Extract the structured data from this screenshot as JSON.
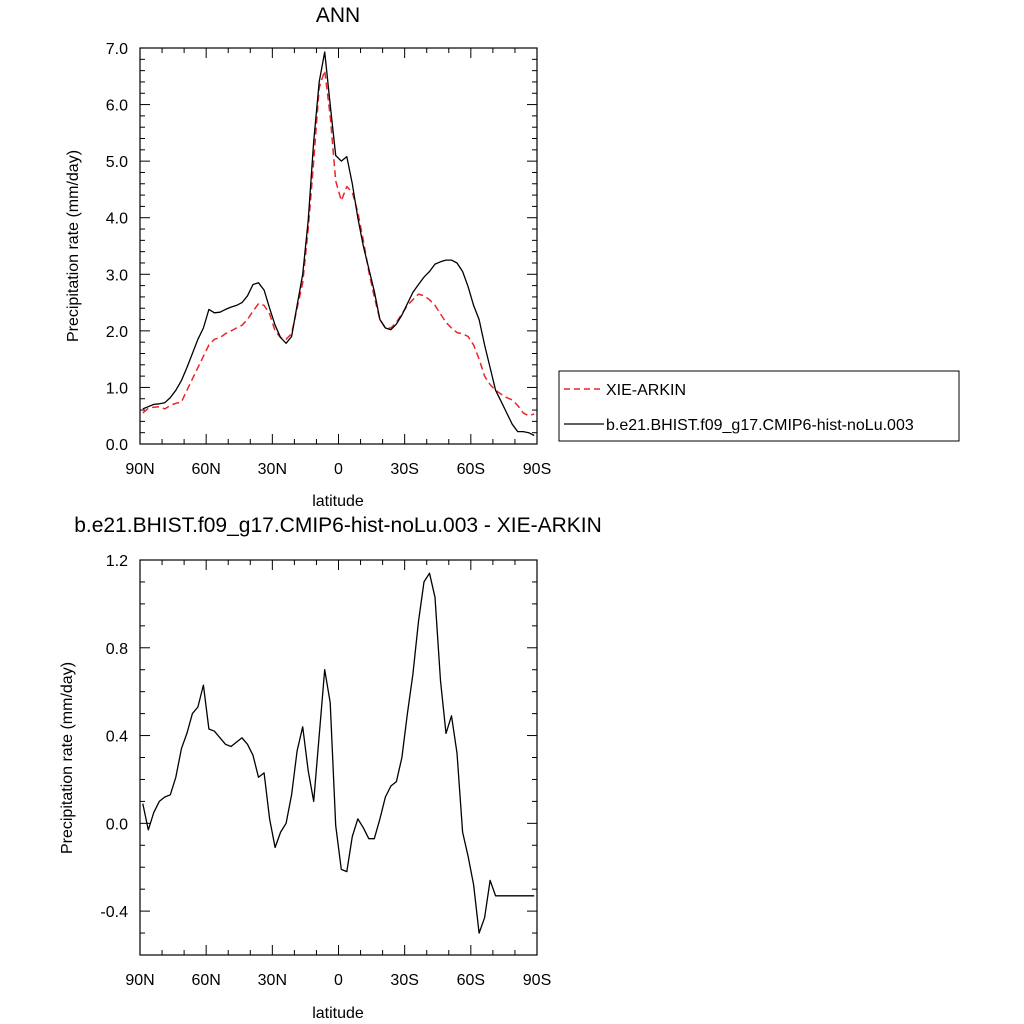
{
  "colors": {
    "obs": "#e8262b",
    "model": "#000000"
  },
  "chart_data": [
    {
      "type": "line",
      "title": "ANN",
      "xlabel": "latitude",
      "ylabel": "Precipitation rate (mm/day)",
      "xlim": [
        90,
        -90
      ],
      "ylim": [
        0,
        7
      ],
      "xticks": [
        {
          "v": 90,
          "label": "90N"
        },
        {
          "v": 60,
          "label": "60N"
        },
        {
          "v": 30,
          "label": "30N"
        },
        {
          "v": 0,
          "label": "0"
        },
        {
          "v": -30,
          "label": "30S"
        },
        {
          "v": -60,
          "label": "60S"
        },
        {
          "v": -90,
          "label": "90S"
        }
      ],
      "yticks": [
        {
          "v": 0,
          "label": "0.0"
        },
        {
          "v": 1,
          "label": "1.0"
        },
        {
          "v": 2,
          "label": "2.0"
        },
        {
          "v": 3,
          "label": "3.0"
        },
        {
          "v": 4,
          "label": "4.0"
        },
        {
          "v": 5,
          "label": "5.0"
        },
        {
          "v": 6,
          "label": "6.0"
        },
        {
          "v": 7,
          "label": "7.0"
        }
      ],
      "legend_position": "right",
      "series": [
        {
          "name": "XIE-ARKIN",
          "style": "dashed",
          "color_key": "obs",
          "x": [
            88.75,
            86.25,
            83.75,
            81.25,
            78.75,
            76.25,
            73.75,
            71.25,
            68.75,
            66.25,
            63.75,
            61.25,
            58.75,
            56.25,
            53.75,
            51.25,
            48.75,
            46.25,
            43.75,
            41.25,
            38.75,
            36.25,
            33.75,
            31.25,
            28.75,
            26.25,
            23.75,
            21.25,
            18.75,
            16.25,
            13.75,
            11.25,
            8.75,
            6.25,
            3.75,
            1.25,
            -1.25,
            -3.75,
            -6.25,
            -8.75,
            -11.25,
            -13.75,
            -16.25,
            -18.75,
            -21.25,
            -23.75,
            -26.25,
            -28.75,
            -31.25,
            -33.75,
            -36.25,
            -38.75,
            -41.25,
            -43.75,
            -46.25,
            -48.75,
            -51.25,
            -53.75,
            -56.25,
            -58.75,
            -61.25,
            -63.75,
            -66.25,
            -68.75,
            -71.25,
            -73.75,
            -76.25,
            -78.75,
            -81.25,
            -83.75,
            -86.25,
            -88.75
          ],
          "y": [
            0.55,
            0.63,
            0.65,
            0.66,
            0.62,
            0.68,
            0.72,
            0.74,
            0.95,
            1.15,
            1.35,
            1.55,
            1.75,
            1.85,
            1.88,
            1.95,
            2.0,
            2.05,
            2.1,
            2.2,
            2.35,
            2.48,
            2.45,
            2.3,
            2.0,
            1.88,
            1.85,
            1.95,
            2.4,
            2.85,
            3.8,
            5.0,
            6.3,
            6.6,
            5.8,
            4.65,
            4.3,
            4.55,
            4.45,
            4.1,
            3.6,
            3.05,
            2.6,
            2.2,
            2.05,
            2.05,
            2.15,
            2.3,
            2.45,
            2.55,
            2.65,
            2.62,
            2.55,
            2.45,
            2.3,
            2.15,
            2.05,
            1.97,
            1.95,
            1.9,
            1.75,
            1.5,
            1.2,
            1.05,
            0.95,
            0.88,
            0.82,
            0.78,
            0.68,
            0.55,
            0.5,
            0.53
          ]
        },
        {
          "name": "b.e21.BHIST.f09_g17.CMIP6-hist-noLu.003",
          "style": "solid",
          "color_key": "model",
          "x": [
            88.75,
            86.25,
            83.75,
            81.25,
            78.75,
            76.25,
            73.75,
            71.25,
            68.75,
            66.25,
            63.75,
            61.25,
            58.75,
            56.25,
            53.75,
            51.25,
            48.75,
            46.25,
            43.75,
            41.25,
            38.75,
            36.25,
            33.75,
            31.25,
            28.75,
            26.25,
            23.75,
            21.25,
            18.75,
            16.25,
            13.75,
            11.25,
            8.75,
            6.25,
            3.75,
            1.25,
            -1.25,
            -3.75,
            -6.25,
            -8.75,
            -11.25,
            -13.75,
            -16.25,
            -18.75,
            -21.25,
            -23.75,
            -26.25,
            -28.75,
            -31.25,
            -33.75,
            -36.25,
            -38.75,
            -41.25,
            -43.75,
            -46.25,
            -48.75,
            -51.25,
            -53.75,
            -56.25,
            -58.75,
            -61.25,
            -63.75,
            -66.25,
            -68.75,
            -71.25,
            -73.75,
            -76.25,
            -78.75,
            -81.25,
            -83.75,
            -86.25,
            -88.75
          ],
          "y": [
            0.62,
            0.66,
            0.7,
            0.71,
            0.73,
            0.82,
            0.95,
            1.12,
            1.35,
            1.6,
            1.85,
            2.05,
            2.38,
            2.32,
            2.33,
            2.38,
            2.42,
            2.45,
            2.5,
            2.62,
            2.82,
            2.85,
            2.72,
            2.4,
            2.1,
            1.88,
            1.78,
            1.9,
            2.45,
            3.0,
            3.95,
            5.35,
            6.4,
            6.93,
            6.0,
            5.1,
            5.0,
            5.08,
            4.6,
            4.0,
            3.5,
            3.1,
            2.7,
            2.2,
            2.05,
            2.02,
            2.12,
            2.28,
            2.48,
            2.68,
            2.82,
            2.95,
            3.05,
            3.18,
            3.22,
            3.25,
            3.25,
            3.2,
            3.05,
            2.78,
            2.45,
            2.2,
            1.75,
            1.35,
            0.95,
            0.75,
            0.55,
            0.35,
            0.22,
            0.22,
            0.2,
            0.15
          ]
        }
      ]
    },
    {
      "type": "line",
      "title": "b.e21.BHIST.f09_g17.CMIP6-hist-noLu.003 - XIE-ARKIN",
      "xlabel": "latitude",
      "ylabel": "Precipitation rate (mm/day)",
      "xlim": [
        90,
        -90
      ],
      "ylim": [
        -0.6,
        1.2
      ],
      "xticks": [
        {
          "v": 90,
          "label": "90N"
        },
        {
          "v": 60,
          "label": "60N"
        },
        {
          "v": 30,
          "label": "30N"
        },
        {
          "v": 0,
          "label": "0"
        },
        {
          "v": -30,
          "label": "30S"
        },
        {
          "v": -60,
          "label": "60S"
        },
        {
          "v": -90,
          "label": "90S"
        }
      ],
      "yticks": [
        {
          "v": -0.4,
          "label": "-0.4"
        },
        {
          "v": 0,
          "label": "0.0"
        },
        {
          "v": 0.4,
          "label": "0.4"
        },
        {
          "v": 0.8,
          "label": "0.8"
        },
        {
          "v": 1.2,
          "label": "1.2"
        }
      ],
      "series": [
        {
          "style": "solid",
          "color_key": "model",
          "x": [
            88.75,
            86.25,
            83.75,
            81.25,
            78.75,
            76.25,
            73.75,
            71.25,
            68.75,
            66.25,
            63.75,
            61.25,
            58.75,
            56.25,
            53.75,
            51.25,
            48.75,
            46.25,
            43.75,
            41.25,
            38.75,
            36.25,
            33.75,
            31.25,
            28.75,
            26.25,
            23.75,
            21.25,
            18.75,
            16.25,
            13.75,
            11.25,
            8.75,
            6.25,
            3.75,
            1.25,
            -1.25,
            -3.75,
            -6.25,
            -8.75,
            -11.25,
            -13.75,
            -16.25,
            -18.75,
            -21.25,
            -23.75,
            -26.25,
            -28.75,
            -31.25,
            -33.75,
            -36.25,
            -38.75,
            -41.25,
            -43.75,
            -46.25,
            -48.75,
            -51.25,
            -53.75,
            -56.25,
            -58.75,
            -61.25,
            -63.75,
            -66.25,
            -68.75,
            -71.25,
            -73.75,
            -76.25,
            -78.75,
            -81.25,
            -83.75,
            -86.25,
            -88.75
          ],
          "y": [
            0.09,
            -0.03,
            0.05,
            0.1,
            0.12,
            0.13,
            0.21,
            0.34,
            0.41,
            0.5,
            0.53,
            0.63,
            0.43,
            0.42,
            0.39,
            0.36,
            0.35,
            0.37,
            0.39,
            0.36,
            0.31,
            0.21,
            0.23,
            0.02,
            -0.11,
            -0.04,
            0.0,
            0.13,
            0.33,
            0.44,
            0.24,
            0.1,
            0.4,
            0.7,
            0.55,
            -0.01,
            -0.21,
            -0.22,
            -0.06,
            0.02,
            -0.02,
            -0.07,
            -0.07,
            0.02,
            0.12,
            0.17,
            0.19,
            0.3,
            0.5,
            0.68,
            0.92,
            1.1,
            1.14,
            1.03,
            0.65,
            0.41,
            0.49,
            0.32,
            -0.04,
            -0.15,
            -0.28,
            -0.5,
            -0.43,
            -0.26,
            -0.33,
            -0.33,
            -0.33,
            -0.33,
            -0.33,
            -0.33,
            -0.33,
            -0.33
          ]
        }
      ]
    }
  ]
}
